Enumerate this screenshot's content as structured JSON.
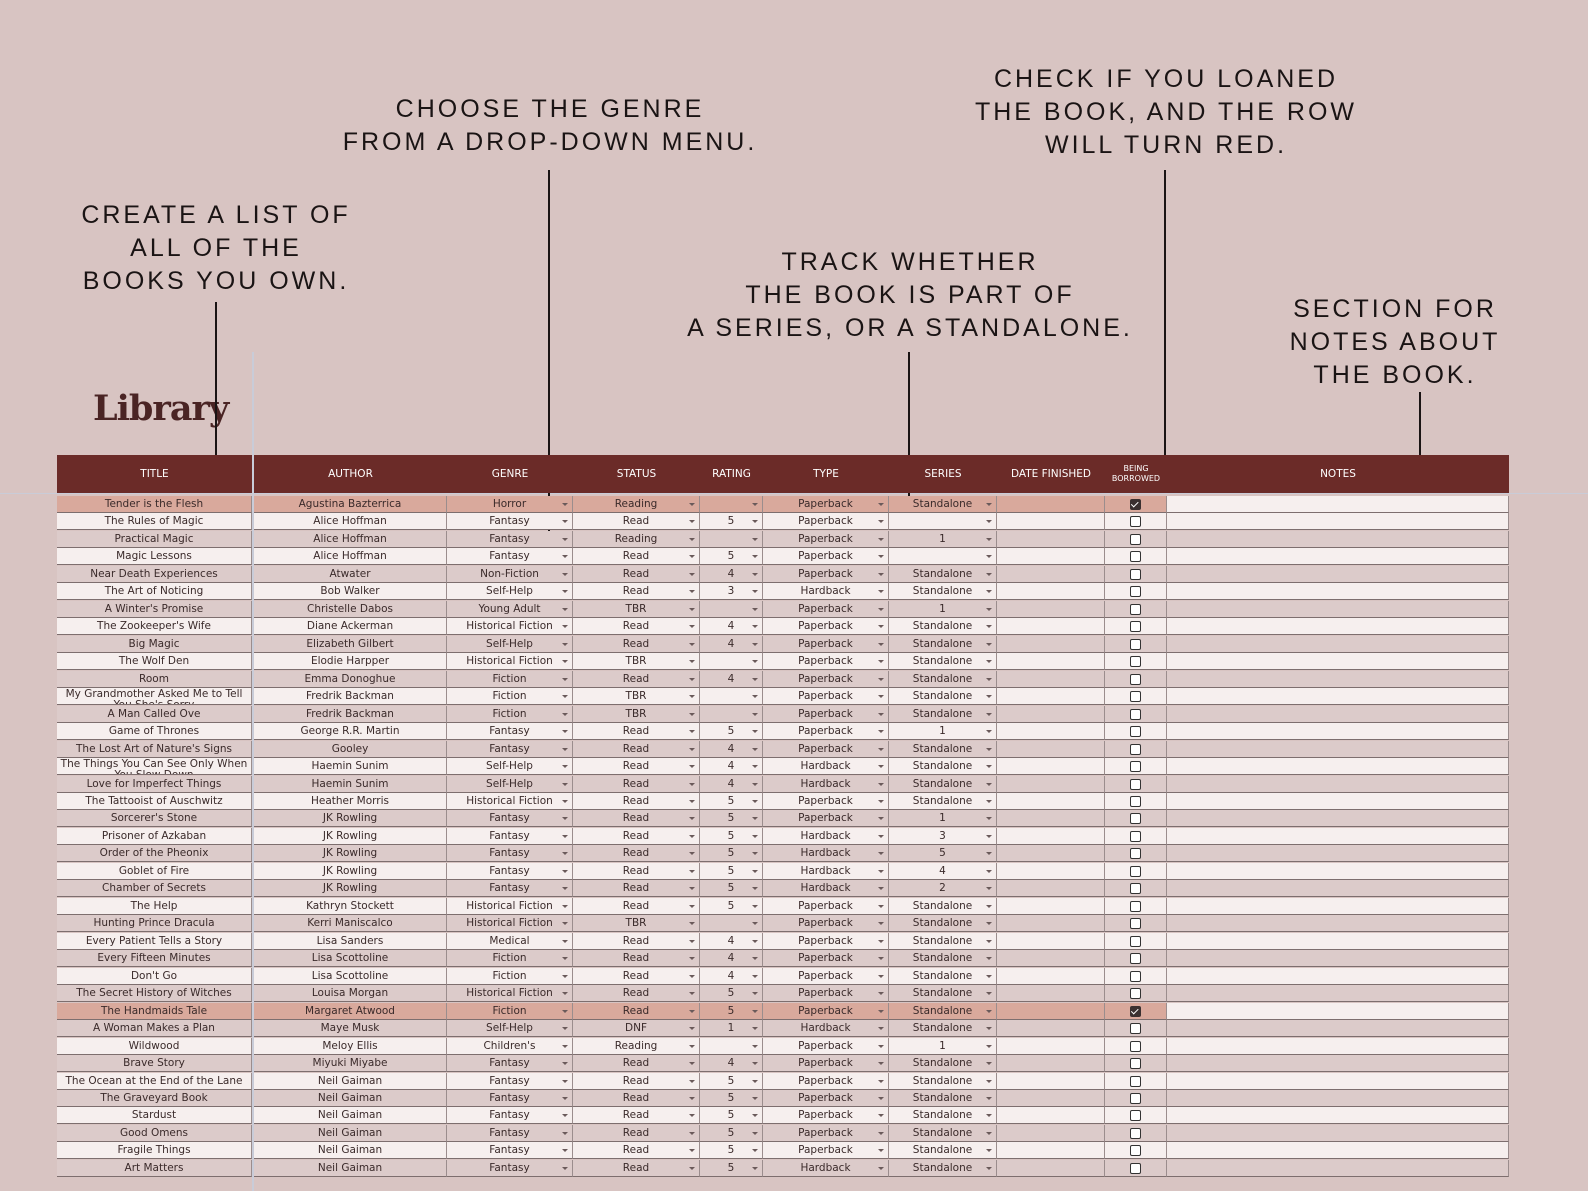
{
  "annotations": [
    {
      "lines": [
        "CREATE A LIST OF",
        "ALL OF THE",
        "BOOKS YOU OWN."
      ]
    },
    {
      "lines": [
        "CHOOSE THE GENRE",
        "FROM A DROP-DOWN MENU."
      ]
    },
    {
      "lines": [
        "TRACK WHETHER",
        "THE BOOK IS PART OF",
        "A SERIES, OR A STANDALONE."
      ]
    },
    {
      "lines": [
        "CHECK IF YOU LOANED",
        "THE BOOK, AND THE ROW",
        "WILL TURN RED."
      ]
    },
    {
      "lines": [
        "SECTION FOR",
        "NOTES ABOUT",
        "THE BOOK."
      ]
    }
  ],
  "header": {
    "title": "Library"
  },
  "table": {
    "header": [
      "TITLE",
      "AUTHOR",
      "GENRE",
      "STATUS",
      "RATING",
      "TYPE",
      "SERIES",
      "DATE FINISHED",
      "BEING BORROWED",
      "NOTES"
    ],
    "rows": [
      [
        "Tender is the Flesh",
        "Agustina Bazterrica",
        "Horror",
        "Reading",
        null,
        "Paperback",
        "Standalone",
        true
      ],
      [
        "The Rules of Magic",
        "Alice Hoffman",
        "Fantasy",
        "Read",
        5,
        "Paperback",
        null,
        false
      ],
      [
        "Practical Magic",
        "Alice Hoffman",
        "Fantasy",
        "Reading",
        null,
        "Paperback",
        1,
        false
      ],
      [
        "Magic Lessons",
        "Alice Hoffman",
        "Fantasy",
        "Read",
        5,
        "Paperback",
        null,
        false
      ],
      [
        "Near Death Experiences",
        "Atwater",
        "Non-Fiction",
        "Read",
        4,
        "Paperback",
        "Standalone",
        false
      ],
      [
        "The Art of Noticing",
        "Bob Walker",
        "Self-Help",
        "Read",
        3,
        "Hardback",
        "Standalone",
        false
      ],
      [
        "A Winter's Promise",
        "Christelle Dabos",
        "Young Adult",
        "TBR",
        null,
        "Paperback",
        1,
        false
      ],
      [
        "The Zookeeper's Wife",
        "Diane Ackerman",
        "Historical Fiction",
        "Read",
        4,
        "Paperback",
        "Standalone",
        false
      ],
      [
        "Big Magic",
        "Elizabeth Gilbert",
        "Self-Help",
        "Read",
        4,
        "Paperback",
        "Standalone",
        false
      ],
      [
        "The Wolf Den",
        "Elodie Harpper",
        "Historical Fiction",
        "TBR",
        null,
        "Paperback",
        "Standalone",
        false
      ],
      [
        "Room",
        "Emma Donoghue",
        "Fiction",
        "Read",
        4,
        "Paperback",
        "Standalone",
        false
      ],
      [
        "My Grandmother Asked Me to Tell You She's Sorry",
        "Fredrik Backman",
        "Fiction",
        "TBR",
        null,
        "Paperback",
        "Standalone",
        false
      ],
      [
        "A Man Called Ove",
        "Fredrik Backman",
        "Fiction",
        "TBR",
        null,
        "Paperback",
        "Standalone",
        false
      ],
      [
        "Game of Thrones",
        "George R.R. Martin",
        "Fantasy",
        "Read",
        5,
        "Paperback",
        1,
        false
      ],
      [
        "The Lost Art of Nature's Signs",
        "Gooley",
        "Fantasy",
        "Read",
        4,
        "Paperback",
        "Standalone",
        false
      ],
      [
        "The Things You Can See Only When You Slow Down",
        "Haemin Sunim",
        "Self-Help",
        "Read",
        4,
        "Hardback",
        "Standalone",
        false
      ],
      [
        "Love for Imperfect Things",
        "Haemin Sunim",
        "Self-Help",
        "Read",
        4,
        "Hardback",
        "Standalone",
        false
      ],
      [
        "The Tattooist of Auschwitz",
        "Heather Morris",
        "Historical Fiction",
        "Read",
        5,
        "Paperback",
        "Standalone",
        false
      ],
      [
        "Sorcerer's Stone",
        "JK Rowling",
        "Fantasy",
        "Read",
        5,
        "Paperback",
        1,
        false
      ],
      [
        "Prisoner of Azkaban",
        "JK Rowling",
        "Fantasy",
        "Read",
        5,
        "Hardback",
        3,
        false
      ],
      [
        "Order of the Pheonix",
        "JK Rowling",
        "Fantasy",
        "Read",
        5,
        "Hardback",
        5,
        false
      ],
      [
        "Goblet of Fire",
        "JK Rowling",
        "Fantasy",
        "Read",
        5,
        "Hardback",
        4,
        false
      ],
      [
        "Chamber of Secrets",
        "JK Rowling",
        "Fantasy",
        "Read",
        5,
        "Hardback",
        2,
        false
      ],
      [
        "The Help",
        "Kathryn Stockett",
        "Historical Fiction",
        "Read",
        5,
        "Paperback",
        "Standalone",
        false
      ],
      [
        "Hunting Prince Dracula",
        "Kerri Maniscalco",
        "Historical Fiction",
        "TBR",
        null,
        "Paperback",
        "Standalone",
        false
      ],
      [
        "Every Patient Tells a Story",
        "Lisa Sanders",
        "Medical",
        "Read",
        4,
        "Paperback",
        "Standalone",
        false
      ],
      [
        "Every Fifteen Minutes",
        "Lisa Scottoline",
        "Fiction",
        "Read",
        4,
        "Paperback",
        "Standalone",
        false
      ],
      [
        "Don't Go",
        "Lisa Scottoline",
        "Fiction",
        "Read",
        4,
        "Paperback",
        "Standalone",
        false
      ],
      [
        "The Secret History of Witches",
        "Louisa Morgan",
        "Historical Fiction",
        "Read",
        5,
        "Paperback",
        "Standalone",
        false
      ],
      [
        "The Handmaids Tale",
        "Margaret Atwood",
        "Fiction",
        "Read",
        5,
        "Paperback",
        "Standalone",
        true
      ],
      [
        "A Woman Makes a Plan",
        "Maye Musk",
        "Self-Help",
        "DNF",
        1,
        "Hardback",
        "Standalone",
        false
      ],
      [
        "Wildwood",
        "Meloy Ellis",
        "Children's",
        "Reading",
        null,
        "Paperback",
        1,
        false
      ],
      [
        "Brave Story",
        "Miyuki Miyabe",
        "Fantasy",
        "Read",
        4,
        "Paperback",
        "Standalone",
        false
      ],
      [
        "The Ocean at the End of the Lane",
        "Neil Gaiman",
        "Fantasy",
        "Read",
        5,
        "Paperback",
        "Standalone",
        false
      ],
      [
        "The Graveyard Book",
        "Neil Gaiman",
        "Fantasy",
        "Read",
        5,
        "Paperback",
        "Standalone",
        false
      ],
      [
        "Stardust",
        "Neil Gaiman",
        "Fantasy",
        "Read",
        5,
        "Paperback",
        "Standalone",
        false
      ],
      [
        "Good Omens",
        "Neil Gaiman",
        "Fantasy",
        "Read",
        5,
        "Paperback",
        "Standalone",
        false
      ],
      [
        "Fragile Things",
        "Neil Gaiman",
        "Fantasy",
        "Read",
        5,
        "Paperback",
        "Standalone",
        false
      ],
      [
        "Art Matters",
        "Neil Gaiman",
        "Fantasy",
        "Read",
        5,
        "Hardback",
        "Standalone",
        false
      ]
    ]
  }
}
